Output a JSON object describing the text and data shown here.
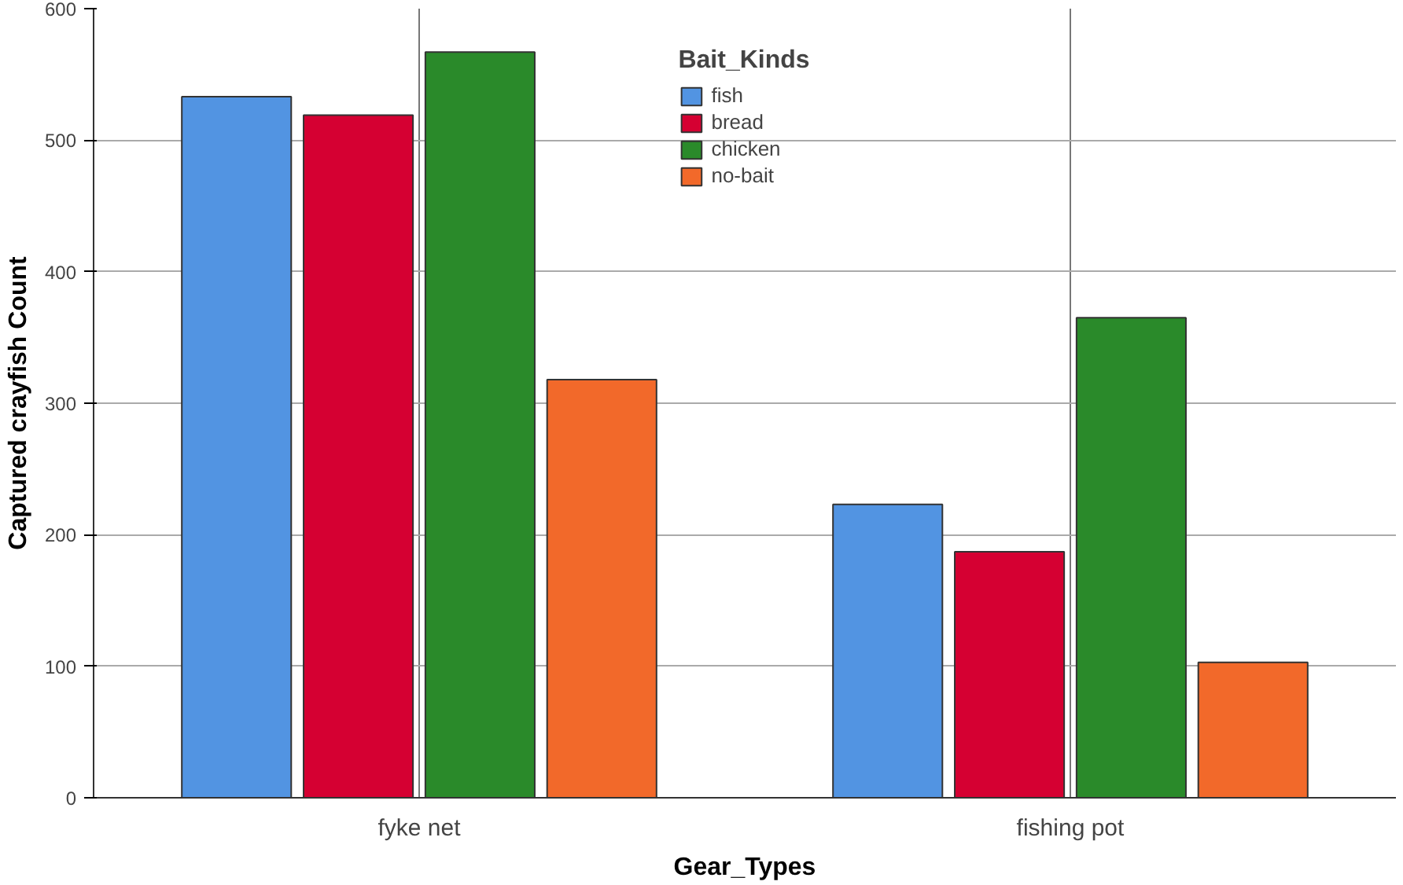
{
  "chart_data": {
    "type": "bar",
    "xlabel": "Gear_Types",
    "ylabel": "Captured crayfish Count",
    "legend_title": "Bait_Kinds",
    "categories": [
      "fyke net",
      "fishing pot"
    ],
    "series": [
      {
        "name": "fish",
        "color": "#5294e2",
        "values": [
          533,
          223
        ]
      },
      {
        "name": "bread",
        "color": "#d50032",
        "values": [
          519,
          187
        ]
      },
      {
        "name": "chicken",
        "color": "#2a8a2a",
        "values": [
          567,
          365
        ]
      },
      {
        "name": "no-bait",
        "color": "#f2692a",
        "values": [
          318,
          103
        ]
      }
    ],
    "ylim": [
      0,
      600
    ],
    "yticks": [
      0,
      100,
      200,
      300,
      400,
      500,
      600
    ],
    "grid": true,
    "legend": "top"
  }
}
